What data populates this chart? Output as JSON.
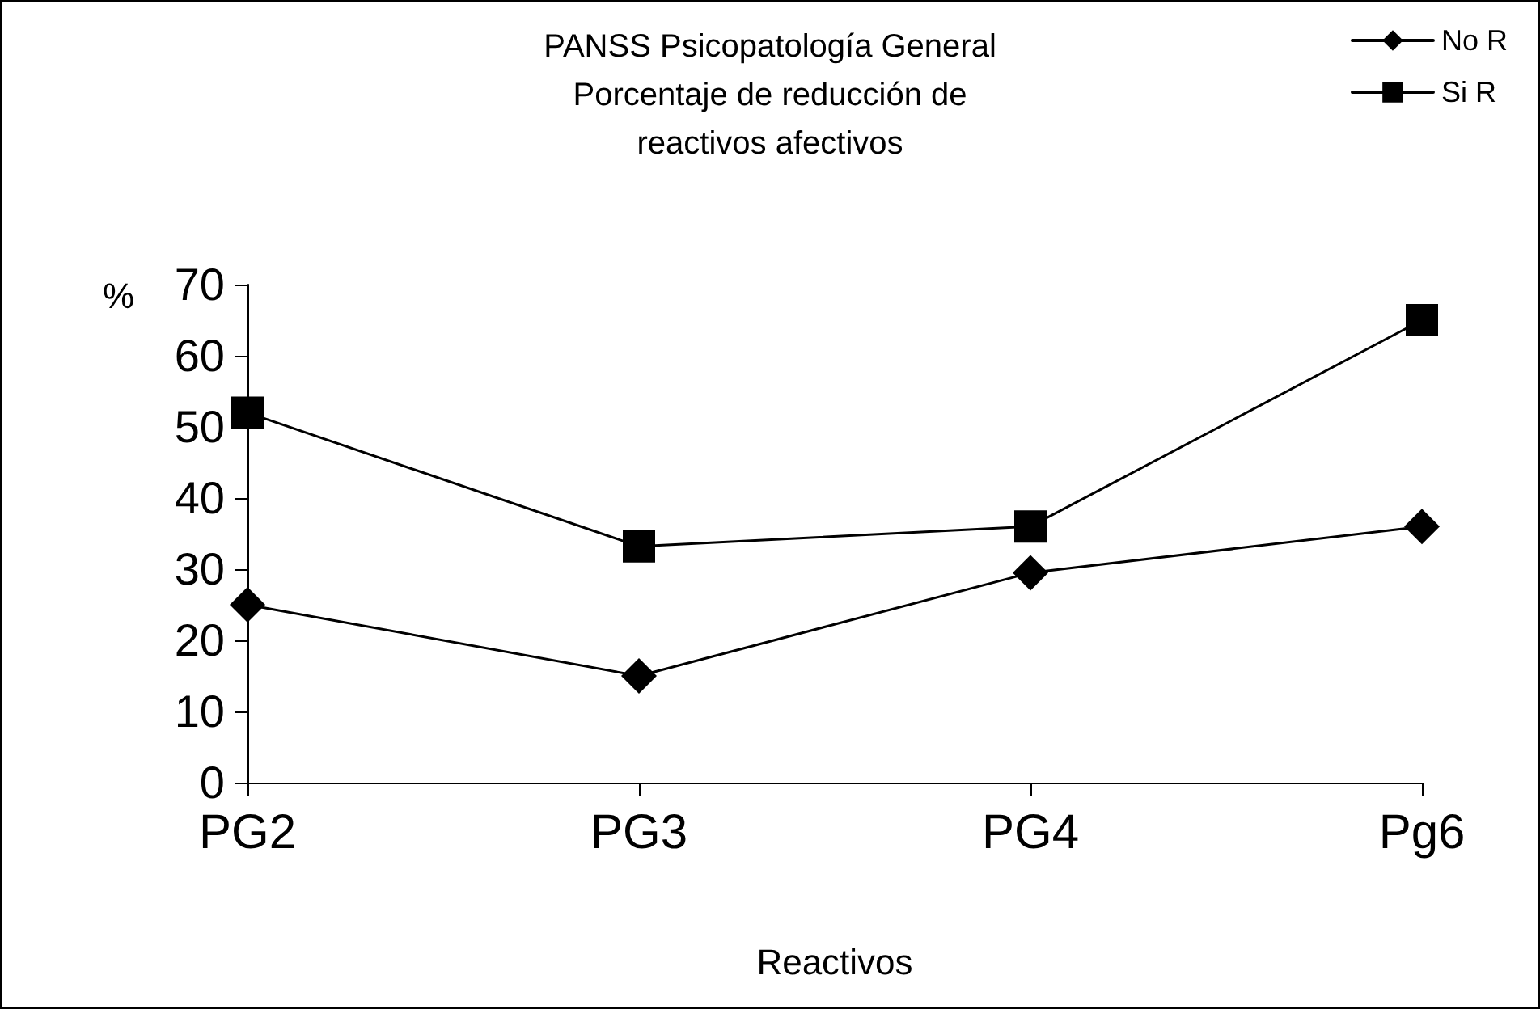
{
  "chart_data": {
    "type": "line",
    "title": "PANSS Psicopatología General\nPorcentaje de reducción de\nreactivos afectivos",
    "xlabel": "Reactivos",
    "ylabel": "%",
    "categories": [
      "PG2",
      "PG3",
      "PG4",
      "Pg6"
    ],
    "series": [
      {
        "name": "No R",
        "color": "#000000",
        "marker": "diamond",
        "values": [
          25,
          15,
          29.5,
          36
        ]
      },
      {
        "name": "Si R",
        "color": "#000000",
        "marker": "square",
        "values": [
          52,
          33.2,
          36,
          65
        ]
      }
    ],
    "ylim": [
      0,
      70
    ],
    "yticks": [
      0,
      10,
      20,
      30,
      40,
      50,
      60,
      70
    ],
    "grid": false,
    "legend": "top right",
    "line_style": "solid"
  }
}
